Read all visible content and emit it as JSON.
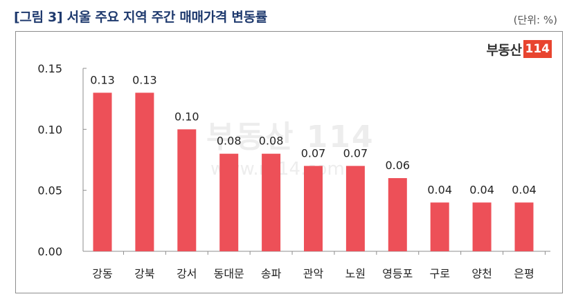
{
  "header": {
    "title": "[그림 3] 서울 주요 지역 주간 매매가격 변동률",
    "unit": "(단위: %)"
  },
  "logo": {
    "text": "부동산",
    "number": "114",
    "color": "#e8442f"
  },
  "watermark": {
    "main": "부동산 114",
    "url": "www.r114.com"
  },
  "chart_data": {
    "type": "bar",
    "categories": [
      "강동",
      "강북",
      "강서",
      "동대문",
      "송파",
      "관악",
      "노원",
      "영등포",
      "구로",
      "양천",
      "은평"
    ],
    "values": [
      0.13,
      0.13,
      0.1,
      0.08,
      0.08,
      0.07,
      0.07,
      0.06,
      0.04,
      0.04,
      0.04
    ],
    "value_labels": [
      "0.13",
      "0.13",
      "0.10",
      "0.08",
      "0.08",
      "0.07",
      "0.07",
      "0.06",
      "0.04",
      "0.04",
      "0.04"
    ],
    "y_ticks": [
      "0.00",
      "0.05",
      "0.10",
      "0.15"
    ],
    "y_tick_values": [
      0,
      0.05,
      0.1,
      0.15
    ],
    "ylim": [
      0,
      0.15
    ],
    "grid": false,
    "bar_color": "#ed5058"
  }
}
